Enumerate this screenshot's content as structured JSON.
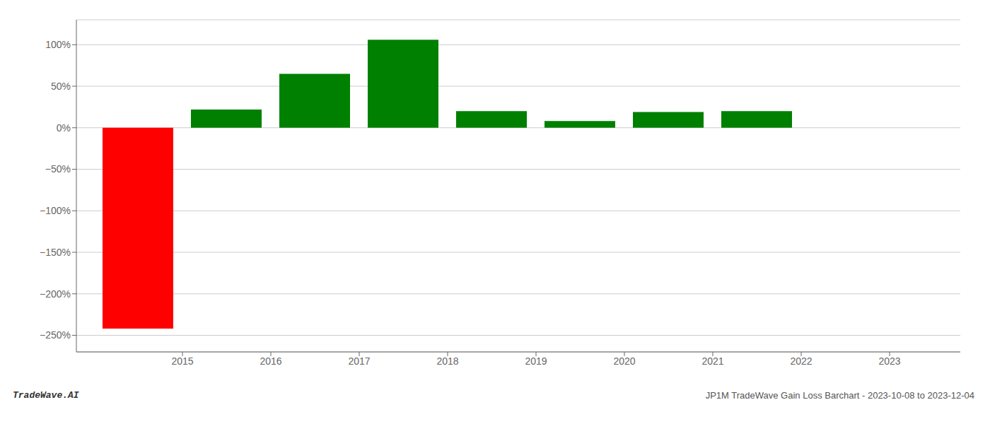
{
  "chart_data": {
    "type": "bar",
    "x": [
      2014.5,
      2015.5,
      2016.5,
      2017.5,
      2018.5,
      2019.5,
      2020.5,
      2021.5,
      2022.5
    ],
    "values": [
      -242,
      22,
      65,
      106,
      20,
      8,
      19,
      20,
      0
    ],
    "colors": [
      "#ff0000",
      "#008000",
      "#008000",
      "#008000",
      "#008000",
      "#008000",
      "#008000",
      "#008000",
      "#008000"
    ],
    "xlim": [
      2013.8,
      2023.8
    ],
    "xticks": [
      2015,
      2016,
      2017,
      2018,
      2019,
      2020,
      2021,
      2022,
      2023
    ],
    "ylim": [
      -270,
      130
    ],
    "yticks": [
      {
        "value": -250,
        "label": "−250%"
      },
      {
        "value": -200,
        "label": "−200%"
      },
      {
        "value": -150,
        "label": "−150%"
      },
      {
        "value": -100,
        "label": "−100%"
      },
      {
        "value": -50,
        "label": "−50%"
      },
      {
        "value": 0,
        "label": "0%"
      },
      {
        "value": 50,
        "label": "50%"
      },
      {
        "value": 100,
        "label": "100%"
      }
    ],
    "grid": true,
    "annotations": [
      "TradeWave.AI",
      "JP1M TradeWave Gain Loss Barchart - 2023-10-08 to 2023-12-04"
    ]
  }
}
